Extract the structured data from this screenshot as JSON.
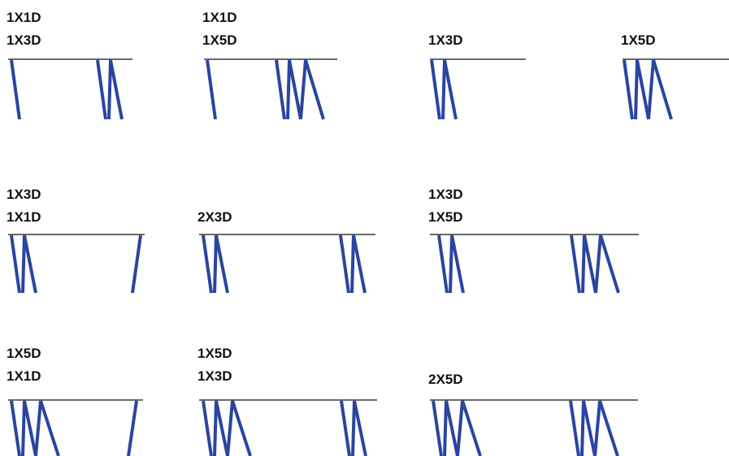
{
  "colors": {
    "background": "#ffffff",
    "rail_line": "#111111",
    "stroke": "#2a45a0",
    "label_text": "#111111"
  },
  "diagrams": [
    {
      "id": "r1c1",
      "labels": [
        "1X1D",
        "1X3D"
      ],
      "left_unit": "1X1D",
      "right_unit": "1X3D"
    },
    {
      "id": "r1c2",
      "labels": [
        "1X1D",
        "1X5D"
      ],
      "left_unit": "1X1D",
      "right_unit": "1X5D"
    },
    {
      "id": "r1c3",
      "labels": [
        "1X3D"
      ],
      "left_unit": "1X3D",
      "right_unit": ""
    },
    {
      "id": "r1c4",
      "labels": [
        "1X5D"
      ],
      "left_unit": "1X5D",
      "right_unit": ""
    },
    {
      "id": "r2c1",
      "labels": [
        "1X3D",
        "1X1D"
      ],
      "left_unit": "1X3D",
      "right_unit": "1X1D"
    },
    {
      "id": "r2c2",
      "labels": [
        "2X3D"
      ],
      "left_unit": "1X3D",
      "right_unit": "1X3D"
    },
    {
      "id": "r2c3",
      "labels": [
        "1X3D",
        "1X5D"
      ],
      "left_unit": "1X3D",
      "right_unit": "1X5D"
    },
    {
      "id": "r3c1",
      "labels": [
        "1X5D",
        "1X1D"
      ],
      "left_unit": "1X5D",
      "right_unit": "1X1D"
    },
    {
      "id": "r3c2",
      "labels": [
        "1X5D",
        "1X3D"
      ],
      "left_unit": "1X5D",
      "right_unit": "1X3D"
    },
    {
      "id": "r3c3",
      "labels": [
        "2X5D"
      ],
      "left_unit": "1X5D",
      "right_unit": "1X5D"
    }
  ]
}
